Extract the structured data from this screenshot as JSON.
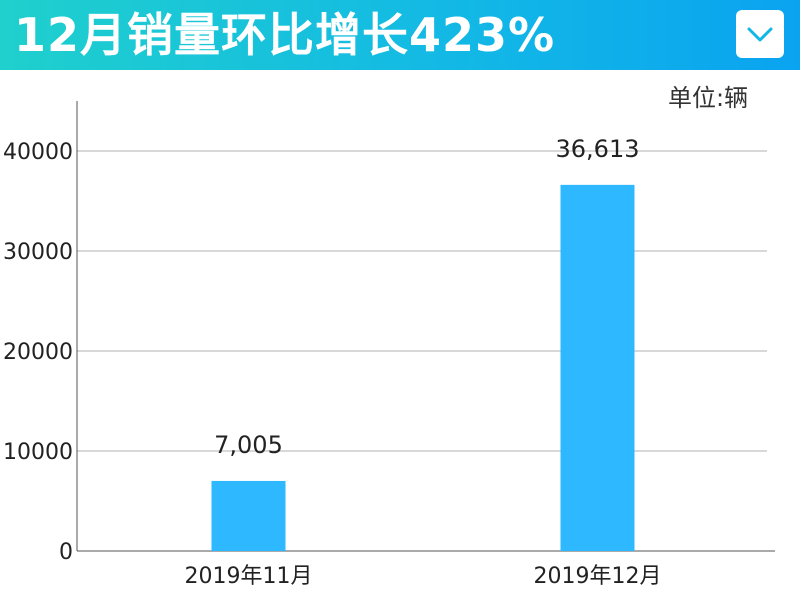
{
  "header": {
    "title": "12月销量环比增长423%",
    "dropdown_icon": "chevron-down-icon",
    "accent_color": "#12b7e6"
  },
  "unit_label": "单位:辆",
  "chart_data": {
    "type": "bar",
    "title": "12月销量环比增长423%",
    "xlabel": "",
    "ylabel": "",
    "unit": "单位:辆",
    "categories": [
      "2019年11月",
      "2019年12月"
    ],
    "values": [
      7005,
      36613
    ],
    "value_labels": [
      "7,005",
      "36,613"
    ],
    "ylim": [
      0,
      45000
    ],
    "yticks": [
      0,
      10000,
      20000,
      30000,
      40000
    ],
    "ytick_labels": [
      "0",
      "10000",
      "20000",
      "30000",
      "40000"
    ],
    "bar_color": "#2db8ff",
    "grid": true,
    "legend": "none"
  }
}
